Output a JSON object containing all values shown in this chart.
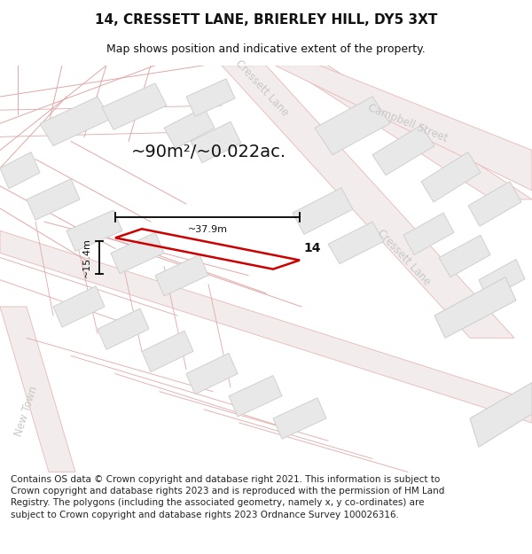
{
  "title": "14, CRESSETT LANE, BRIERLEY HILL, DY5 3XT",
  "subtitle": "Map shows position and indicative extent of the property.",
  "area_label": "~90m²/~0.022ac.",
  "width_label": "~37.9m",
  "height_label": "~15.4m",
  "property_number": "14",
  "footer": "Contains OS data © Crown copyright and database right 2021. This information is subject to Crown copyright and database rights 2023 and is reproduced with the permission of HM Land Registry. The polygons (including the associated geometry, namely x, y co-ordinates) are subject to Crown copyright and database rights 2023 Ordnance Survey 100026316.",
  "map_bg": "#f7f5f5",
  "road_outline_color": "#e8b8b8",
  "road_fill": "#f0eaea",
  "parcel_line_color": "#e0a8a8",
  "building_color": "#e8e8e8",
  "building_edge_color": "#d0d0d0",
  "property_color": "#cc0000",
  "street_label_color": "#c8c8c8",
  "title_fontsize": 11,
  "subtitle_fontsize": 9,
  "footer_fontsize": 7.5
}
